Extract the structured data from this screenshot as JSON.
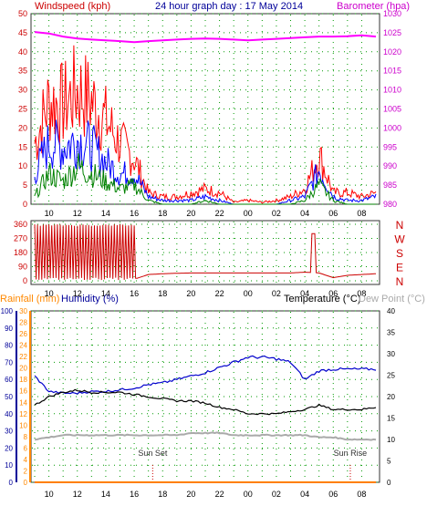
{
  "colors": {
    "wind_gust": "#ff0000",
    "wind_avg": "#0000ff",
    "wind_min": "#008000",
    "barometer": "#ff00ff",
    "direction": "#cc0000",
    "temperature": "#000000",
    "dewpoint": "#aaaaaa",
    "humidity": "#0000cc",
    "rainfall": "#ff8000",
    "grid": "#009900",
    "axis_red": "#cc0000",
    "axis_magenta": "#cc00cc",
    "axis_blue": "#000099",
    "axis_orange": "#ff8800"
  },
  "x_tick_labels": [
    "10",
    "12",
    "14",
    "16",
    "18",
    "20",
    "22",
    "00",
    "02",
    "04",
    "06",
    "08"
  ],
  "chart_data": [
    {
      "type": "line",
      "title": "24 hour graph day : 17 May 2014",
      "ylabel_left": "Windspeed (kph)",
      "ylabel_right": "Barometer (hpa)",
      "ylim_left": [
        0,
        50
      ],
      "ylim_right": [
        980,
        1030
      ],
      "left_ticks": [
        "0",
        "5",
        "10",
        "15",
        "20",
        "25",
        "30",
        "35",
        "40",
        "45",
        "50"
      ],
      "right_ticks": [
        "980",
        "985",
        "990",
        "995",
        "1000",
        "1005",
        "1010",
        "1015",
        "1020",
        "1025",
        "1030"
      ],
      "x": [
        "09",
        "10",
        "11",
        "12",
        "13",
        "14",
        "15",
        "16",
        "17",
        "18",
        "19",
        "20",
        "21",
        "22",
        "23",
        "00",
        "01",
        "02",
        "03",
        "04",
        "05",
        "06",
        "07",
        "08",
        "09"
      ],
      "series": [
        {
          "values": [
            16,
            27,
            26,
            30,
            27,
            22,
            16,
            12,
            3,
            2,
            2,
            3,
            4,
            3,
            0.5,
            1,
            0.5,
            1,
            2,
            4,
            13,
            3,
            3,
            2,
            3
          ],
          "axis": "left",
          "role": "gust"
        },
        {
          "values": [
            8,
            16,
            15,
            17,
            15,
            11,
            8,
            8,
            2,
            1,
            1,
            1,
            2,
            1,
            0,
            0,
            0,
            0,
            1,
            2,
            9,
            2,
            1,
            1,
            2
          ],
          "axis": "left",
          "role": "average"
        },
        {
          "values": [
            2,
            8,
            6,
            10,
            8,
            6,
            4,
            5,
            1,
            0,
            0,
            0,
            1,
            0,
            0,
            0,
            0,
            0,
            0,
            1,
            5,
            1,
            0,
            0,
            0
          ],
          "axis": "left",
          "role": "low"
        },
        {
          "values": [
            1025.2,
            1024.8,
            1024,
            1023.5,
            1023.2,
            1023,
            1022.8,
            1022.5,
            1022.8,
            1023,
            1023.2,
            1023.4,
            1023.5,
            1023.4,
            1023.2,
            1023,
            1023.2,
            1023.4,
            1023.6,
            1023.8,
            1024,
            1024,
            1024.1,
            1024.3,
            1024
          ],
          "axis": "right",
          "role": "barometer"
        }
      ],
      "grid": true
    },
    {
      "type": "line",
      "title": "",
      "ylim": [
        0,
        360
      ],
      "left_ticks": [
        "0",
        "90",
        "180",
        "270",
        "360"
      ],
      "compass_labels": [
        "N",
        "W",
        "S",
        "E",
        "N"
      ],
      "x": [
        "09",
        "10",
        "11",
        "12",
        "13",
        "14",
        "15",
        "16",
        "17",
        "18",
        "19",
        "20",
        "21",
        "22",
        "23",
        "00",
        "01",
        "02",
        "03",
        "04",
        "05",
        "06",
        "07",
        "08",
        "09"
      ],
      "series": [
        {
          "values": [
            360,
            10,
            350,
            15,
            340,
            20,
            355,
            10,
            40,
            45,
            48,
            50,
            50,
            50,
            50,
            50,
            50,
            50,
            50,
            55,
            50,
            20,
            35,
            40,
            45
          ],
          "role": "direction"
        }
      ],
      "grid": true
    },
    {
      "type": "line",
      "ylabel_left_1": "Rainfall (mm)",
      "ylabel_left_2": "Humidity (%)",
      "ylabel_right_1": "Temperature (°C)",
      "ylabel_right_2": "Dew Point (°C)",
      "humidity_ticks": [
        "0",
        "10",
        "20",
        "30",
        "40",
        "50",
        "60",
        "70",
        "80",
        "90",
        "100"
      ],
      "rain_ticks": [
        "0",
        "2",
        "4",
        "6",
        "8",
        "10",
        "12",
        "14",
        "16",
        "18",
        "20",
        "22",
        "24",
        "26",
        "28",
        "30"
      ],
      "temp_ticks": [
        "0",
        "5",
        "10",
        "15",
        "20",
        "25",
        "30",
        "35",
        "40"
      ],
      "ylim_humidity": [
        0,
        100
      ],
      "ylim_rain": [
        0,
        30
      ],
      "ylim_temp": [
        0,
        40
      ],
      "x": [
        "09",
        "10",
        "11",
        "12",
        "13",
        "14",
        "15",
        "16",
        "17",
        "18",
        "19",
        "20",
        "21",
        "22",
        "23",
        "00",
        "01",
        "02",
        "03",
        "04",
        "05",
        "06",
        "07",
        "08",
        "09"
      ],
      "annotations": [
        {
          "text": "Sun Set",
          "x": "17.3"
        },
        {
          "text": "Sun Rise",
          "x": "07.2"
        }
      ],
      "series": [
        {
          "values": [
            62,
            53,
            52,
            52,
            53,
            53,
            54,
            55,
            57,
            58,
            60,
            62,
            64,
            67,
            70,
            73,
            73,
            72,
            70,
            60,
            65,
            66,
            66,
            66,
            66
          ],
          "axis": "humidity",
          "role": "humidity"
        },
        {
          "values": [
            18,
            20,
            21,
            21.5,
            21,
            21,
            21,
            20.5,
            20,
            19.5,
            19,
            19,
            18.5,
            17.5,
            17,
            16,
            16,
            16,
            16.5,
            17,
            18,
            17,
            17,
            17,
            17.5
          ],
          "axis": "temp",
          "role": "temperature"
        },
        {
          "values": [
            10,
            10.5,
            11,
            11,
            11,
            11,
            11,
            11,
            11,
            11,
            11,
            11.5,
            11.5,
            11.5,
            11,
            11,
            11,
            11,
            11,
            11,
            10.5,
            10.5,
            10,
            10,
            10
          ],
          "axis": "temp",
          "role": "dewpoint"
        },
        {
          "values": [
            0,
            0,
            0,
            0,
            0,
            0,
            0,
            0,
            0,
            0,
            0,
            0,
            0,
            0,
            0,
            0,
            0,
            0,
            0,
            0,
            0,
            0,
            0,
            0,
            0
          ],
          "axis": "rain",
          "role": "rainfall"
        }
      ],
      "grid": true
    }
  ]
}
